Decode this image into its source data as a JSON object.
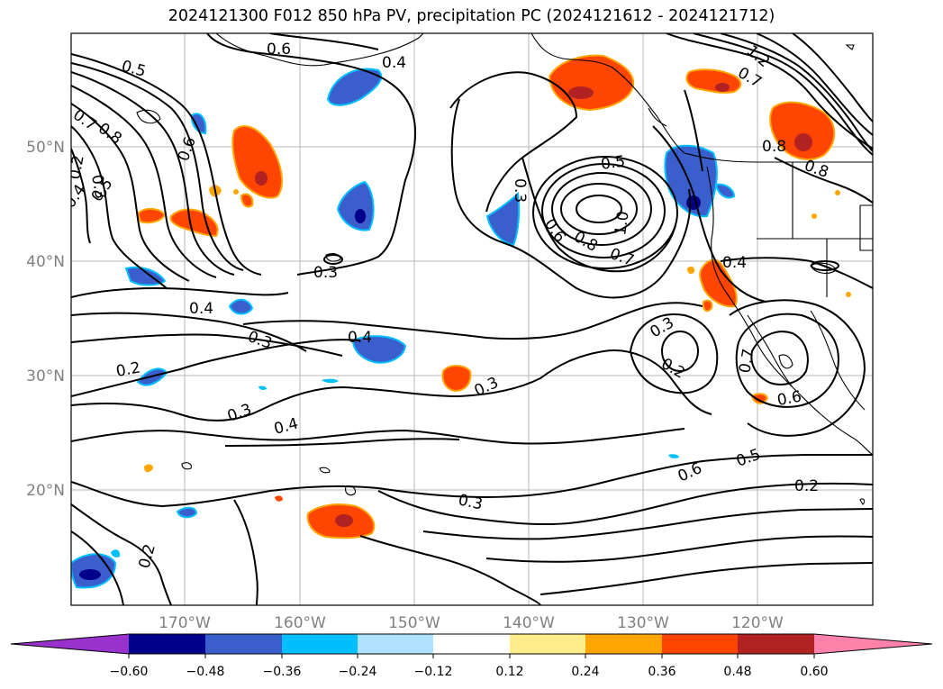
{
  "title": "2024121300 F012 850 hPa PV, precipitation PC (2024121612 - 2024121712)",
  "map": {
    "lat_labels": [
      "50°N",
      "40°N",
      "30°N",
      "20°N"
    ],
    "lon_labels": [
      "170°W",
      "160°W",
      "150°W",
      "140°W",
      "130°W",
      "120°W"
    ],
    "contour_labels": [
      "0.6",
      "0.4",
      "0.5",
      "0.7",
      "0.8",
      "0.2",
      "0.3",
      "0.4",
      "0.5",
      "0.6",
      "0.3",
      "0.5",
      "1.0",
      "0.6",
      "0.8",
      "0.7",
      "0.3",
      "0.4",
      "0.4",
      "0.3",
      "0.4",
      "0.3",
      "0.2",
      "0.3",
      "0.3",
      "0.4",
      "0.2",
      "0.7",
      "0.6",
      "0.6",
      "0.5",
      "0.2",
      "0.3",
      "0.2",
      "0.8",
      "0.8",
      "1.2",
      "0.7"
    ]
  },
  "colorbar": {
    "tick_labels": [
      "−0.60",
      "−0.48",
      "−0.36",
      "−0.24",
      "−0.12",
      "0.12",
      "0.24",
      "0.36",
      "0.48",
      "0.60"
    ],
    "colors": [
      "#9932cc",
      "#00008b",
      "#3a5fcd",
      "#00bfff",
      "#b0e2ff",
      "#ffffff",
      "#ffec8b",
      "#ffa500",
      "#ff4500",
      "#b22222",
      "#ff82ab"
    ]
  }
}
